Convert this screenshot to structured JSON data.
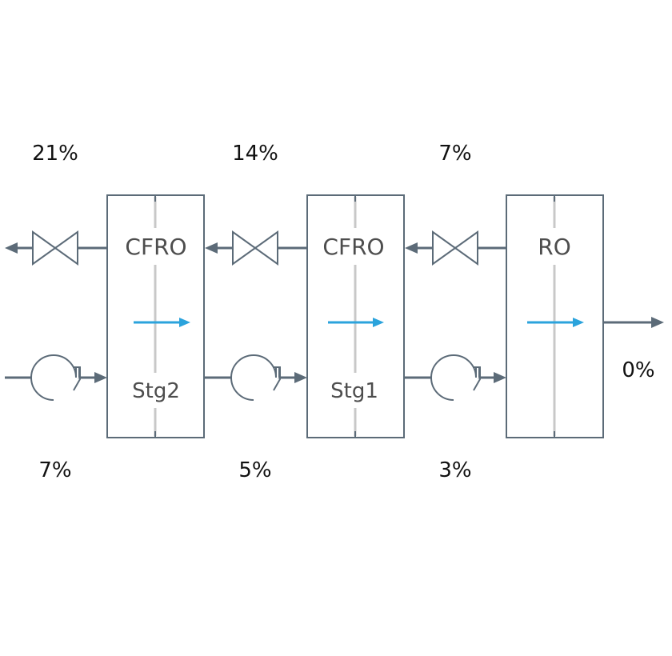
{
  "units": [
    {
      "label": "CFRO",
      "sublabel": "Stg2"
    },
    {
      "label": "CFRO",
      "sublabel": "Stg1"
    },
    {
      "label": "RO",
      "sublabel": ""
    }
  ],
  "top_percent": [
    "21%",
    "14%",
    "7%"
  ],
  "bottom_percent": [
    "7%",
    "5%",
    "3%"
  ],
  "outlet_percent": "0%",
  "colors": {
    "pipe": "#5c6b78",
    "flow_arrow": "#2ba3dc"
  }
}
